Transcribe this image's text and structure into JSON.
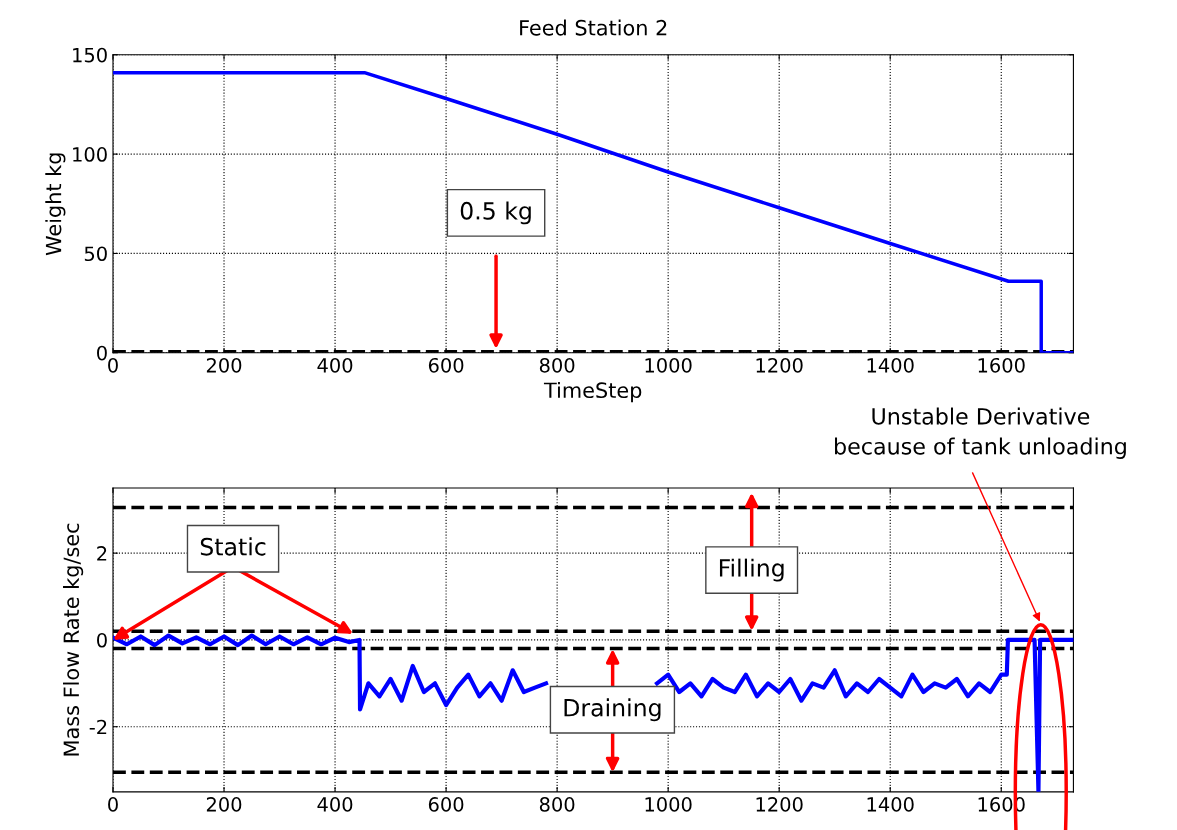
{
  "chart_data": [
    {
      "type": "line",
      "title": "Feed Station 2",
      "xlabel": "TimeStep",
      "ylabel": "Weight kg",
      "xlim": [
        0,
        1730
      ],
      "ylim": [
        0,
        150
      ],
      "xticks": [
        0,
        200,
        400,
        600,
        800,
        1000,
        1200,
        1400,
        1600
      ],
      "yticks": [
        0,
        50,
        100,
        150
      ],
      "grid": true,
      "line_style": "solid",
      "series": [
        {
          "color": "#0000ff",
          "x": [
            0,
            453,
            600,
            800,
            1000,
            1200,
            1400,
            1613,
            1672,
            1672,
            1730
          ],
          "values": [
            141,
            141,
            128,
            110,
            91,
            73,
            55,
            36,
            36,
            0,
            0
          ]
        }
      ],
      "ref_lines": [
        {
          "axis": "y",
          "value": 0.5,
          "label": "0.5 kg",
          "color": "#000000",
          "line_style": "dashed"
        }
      ]
    },
    {
      "type": "line",
      "ylabel": "Mass Flow Rate kg/sec",
      "xlim": [
        0,
        1730
      ],
      "ylim": [
        -3.5,
        3.5
      ],
      "xticks": [
        0,
        200,
        400,
        600,
        800,
        1000,
        1200,
        1400,
        1600
      ],
      "yticks": [
        -2,
        0,
        2
      ],
      "grid": true,
      "line_style": "solid",
      "series": [
        {
          "color": "#0000ff",
          "x": [
            0,
            25,
            50,
            75,
            100,
            125,
            150,
            175,
            200,
            225,
            250,
            275,
            300,
            325,
            350,
            375,
            400,
            425,
            444,
            445,
            460,
            480,
            500,
            520,
            540,
            560,
            580,
            600,
            620,
            640,
            660,
            680,
            700,
            720,
            740,
            760,
            780,
            800,
            820,
            840,
            860,
            880,
            900,
            920,
            940,
            960,
            980,
            1000,
            1020,
            1040,
            1060,
            1080,
            1100,
            1120,
            1140,
            1160,
            1180,
            1200,
            1220,
            1240,
            1260,
            1280,
            1300,
            1320,
            1340,
            1360,
            1380,
            1400,
            1420,
            1440,
            1460,
            1480,
            1500,
            1520,
            1540,
            1560,
            1580,
            1600,
            1610,
            1612,
            1660,
            1667,
            1670,
            1700,
            1730
          ],
          "values": [
            0.05,
            -0.1,
            0.08,
            -0.12,
            0.1,
            -0.08,
            0.06,
            -0.1,
            0.08,
            -0.12,
            0.1,
            -0.1,
            0.08,
            -0.1,
            0.06,
            -0.1,
            0.05,
            -0.05,
            0,
            -1.6,
            -1.0,
            -1.3,
            -0.9,
            -1.4,
            -0.6,
            -1.2,
            -1.0,
            -1.5,
            -1.1,
            -0.8,
            -1.3,
            -1.0,
            -1.4,
            -0.7,
            -1.2,
            -1.1,
            -1.0,
            null,
            null,
            null,
            null,
            null,
            null,
            null,
            null,
            null,
            -1.0,
            -0.8,
            -1.2,
            -1.0,
            -1.3,
            -0.9,
            -1.1,
            -1.2,
            -0.8,
            -1.3,
            -1.0,
            -1.2,
            -0.9,
            -1.4,
            -1.0,
            -1.1,
            -0.7,
            -1.3,
            -1.0,
            -1.2,
            -0.9,
            -1.1,
            -1.3,
            -0.8,
            -1.2,
            -1.0,
            -1.1,
            -0.9,
            -1.3,
            -1.0,
            -1.2,
            -0.8,
            -0.8,
            0,
            0,
            -3.5,
            0,
            0,
            0
          ]
        }
      ],
      "ref_lines": [
        {
          "axis": "y",
          "value": 3.05,
          "color": "#000000",
          "line_style": "dashed"
        },
        {
          "axis": "y",
          "value": 0.2,
          "color": "#000000",
          "line_style": "dashed"
        },
        {
          "axis": "y",
          "value": -0.2,
          "color": "#000000",
          "line_style": "dashed"
        },
        {
          "axis": "y",
          "value": -3.05,
          "color": "#000000",
          "line_style": "dashed"
        }
      ],
      "annotations": [
        {
          "text": "Static",
          "x": 0,
          "y": 0
        },
        "Filling",
        {
          "text": "Draining",
          "x": 900,
          "y": -3.05
        },
        "Unstable Derivative\nbecause of tank unloading"
      ]
    }
  ]
}
